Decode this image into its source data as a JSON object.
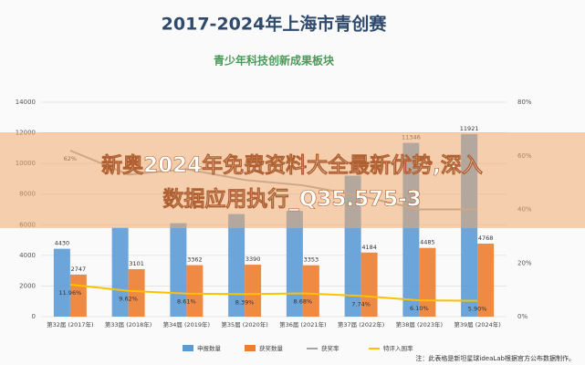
{
  "chart_data": {
    "type": "bar",
    "title": "2017-2024年上海市青创赛",
    "subtitle": "青少年科技创新成果板块",
    "categories": [
      "第32届 (2017年)",
      "第33届 (2018年)",
      "第34届 (2019年)",
      "第35届 (2020年)",
      "第36届 (2021年)",
      "第37届 (2022年)",
      "第38届 (2023年)",
      "第39届 (2024年)"
    ],
    "series": [
      {
        "name": "申报数量",
        "color": "#5b9bd5",
        "values": [
          4430,
          5800,
          6100,
          6700,
          6900,
          9200,
          11346,
          11921
        ],
        "value_labels": [
          "4430",
          null,
          null,
          null,
          null,
          null,
          "11346",
          "11921"
        ]
      },
      {
        "name": "获奖数量",
        "color": "#ed7d31",
        "values": [
          2747,
          3101,
          3362,
          3390,
          3353,
          4184,
          4485,
          4768
        ]
      },
      {
        "name": "获奖率",
        "color": "#a5a5a5",
        "type": "line",
        "axis": "y2",
        "values": [
          62,
          53,
          55,
          51,
          49,
          45,
          40,
          40
        ],
        "value_labels": [
          "62%",
          null,
          null,
          null,
          null,
          null,
          null,
          null
        ]
      },
      {
        "name": "特评入围率",
        "color": "#ffc000",
        "type": "line",
        "axis": "y2",
        "values": [
          11.96,
          9.62,
          8.61,
          8.39,
          8.68,
          7.74,
          6.1,
          5.9
        ],
        "value_labels": [
          "11.96%",
          "9.62%",
          "8.61%",
          "8.39%",
          "8.68%",
          "7.74%",
          "6.10%",
          "5.90%"
        ]
      }
    ],
    "ylim": [
      0,
      14000
    ],
    "yticks": [
      0,
      2000,
      4000,
      6000,
      8000,
      10000,
      12000,
      14000
    ],
    "y2lim": [
      0,
      80
    ],
    "y2ticks": [
      {
        "value": 0,
        "label": "0%"
      },
      {
        "value": 20,
        "label": "20%"
      },
      {
        "value": 40,
        "label": "40%"
      },
      {
        "value": 60,
        "label": "60%"
      },
      {
        "value": 80,
        "label": "80%"
      }
    ],
    "grid": true,
    "note": "注：此表格是新坦星球ideaLab根据官方公布数据制作。"
  },
  "banner": {
    "lines": [
      "新奥2024年免费资料大全最新优势,深入",
      "数据应用执行_Q35.575-3"
    ]
  }
}
